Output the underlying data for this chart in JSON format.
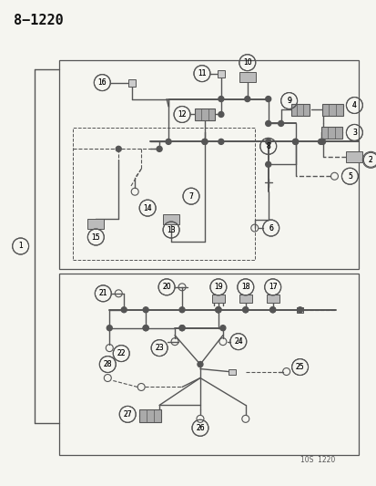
{
  "title": "8−1220",
  "footer": "10S  1220",
  "bg_color": "#f5f5f0",
  "line_color": "#555555",
  "figsize": [
    4.14,
    5.33
  ],
  "dpi": 100
}
